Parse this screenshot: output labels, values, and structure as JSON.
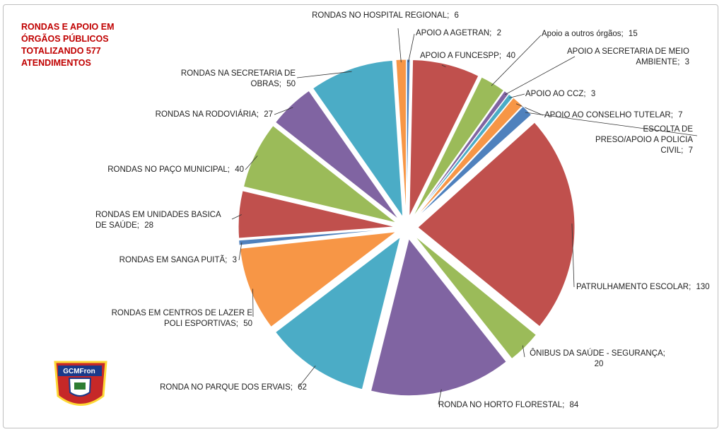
{
  "chart_data": {
    "type": "pie",
    "title": "RONDAS E APOIO EM ÓRGÃOS PÚBLICOS TOTALIZANDO 577 ATENDIMENTOS",
    "categories": [
      "APOIO A AGETRAN;",
      "APOIO A FUNCESPP;",
      "Apoio a outros órgãos;",
      "APOIO A SECRETARIA DE MEIO AMBIENTE;",
      "APOIO AO CCZ;",
      "APOIO AO CONSELHO TUTELAR;",
      "ESCOLTA DE PRESO/APOIO A POLICIA CIVIL;",
      "PATRULHAMENTO ESCOLAR;",
      "ÔNIBUS DA SAÚDE - SEGURANÇA;",
      "RONDA NO HORTO FLORESTAL;",
      "RONDA NO PARQUE DOS ERVAIS;",
      "RONDAS EM CENTROS DE LAZER E POLI ESPORTIVAS;",
      "RONDAS EM SANGA PUITÃ;",
      "RONDAS EM UNIDADES BASICA DE SAÚDE;",
      "RONDAS NO PAÇO MUNICIPAL;",
      "RONDAS NA RODOVIÁRIA;",
      "RONDAS NA SECRETARIA DE OBRAS;",
      "RONDAS NO HOSPITAL REGIONAL;"
    ],
    "values": [
      2,
      40,
      15,
      3,
      3,
      7,
      7,
      130,
      20,
      84,
      62,
      50,
      3,
      28,
      40,
      27,
      50,
      6
    ],
    "colors": [
      "#4f81bd",
      "#c0504d",
      "#9bbb59",
      "#8064a2",
      "#4bacc6",
      "#f79646"
    ]
  },
  "logo_text": "GCMFron"
}
